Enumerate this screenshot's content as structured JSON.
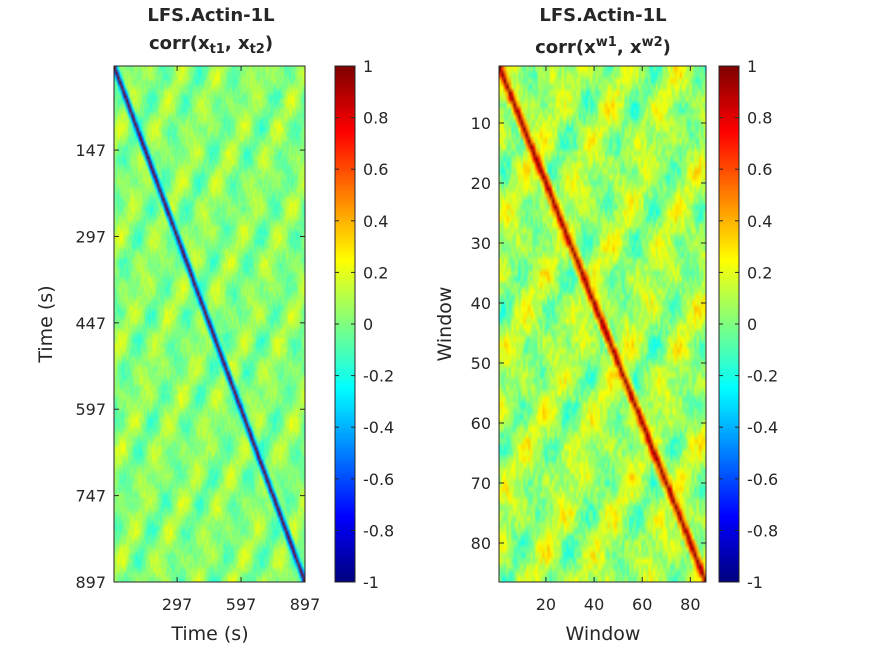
{
  "colormap": "jet",
  "colors": {
    "background": "#ffffff",
    "axis": "#262626",
    "text": "#262626"
  },
  "chart_data": [
    {
      "type": "heatmap",
      "panel": "time",
      "title_line1": "LFS.Actin-1L",
      "title_line2_prefix": "corr(x",
      "title_sub1": "t1",
      "title_mid": ", x",
      "title_sub2": "t2",
      "title_suffix": ")",
      "xlabel": "Time (s)",
      "ylabel": "Time (s)",
      "xlim": [
        1,
        897
      ],
      "ylim": [
        1,
        897
      ],
      "y_reversed": true,
      "xticks": [
        297,
        597,
        897
      ],
      "xticklabels": [
        "297",
        "597",
        "897"
      ],
      "yticks": [
        147,
        297,
        447,
        597,
        747,
        897
      ],
      "yticklabels": [
        "147",
        "297",
        "447",
        "597",
        "747",
        "897"
      ],
      "grid_size": 110,
      "diagonal_value": 1.0,
      "off_diagonal_band_value": -0.45,
      "background_range": [
        -0.2,
        0.25
      ],
      "clim": [
        -1,
        1
      ],
      "colorbar_ticks": [
        -1,
        -0.8,
        -0.6,
        -0.4,
        -0.2,
        0,
        0.2,
        0.4,
        0.6,
        0.8,
        1
      ],
      "colorbar_ticklabels": [
        "-1",
        "-0.8",
        "-0.6",
        "-0.4",
        "-0.2",
        "0",
        "0.2",
        "0.4",
        "0.6",
        "0.8",
        "1"
      ]
    },
    {
      "type": "heatmap",
      "panel": "window",
      "title_line1": "LFS.Actin-1L",
      "title_line2_prefix": "corr(x",
      "title_sup1": "w1",
      "title_mid": ", x",
      "title_sup2": "w2",
      "title_suffix": ")",
      "xlabel": "Window",
      "ylabel": "Window",
      "xlim": [
        0.5,
        86.5
      ],
      "ylim": [
        0.5,
        86.5
      ],
      "y_reversed": true,
      "xticks": [
        20,
        40,
        60,
        80
      ],
      "xticklabels": [
        "20",
        "40",
        "60",
        "80"
      ],
      "yticks": [
        10,
        20,
        30,
        40,
        50,
        60,
        70,
        80
      ],
      "yticklabels": [
        "10",
        "20",
        "30",
        "40",
        "50",
        "60",
        "70",
        "80"
      ],
      "grid_size": 86,
      "diagonal_value": 1.0,
      "background_range": [
        -0.2,
        0.35
      ],
      "clim": [
        -1,
        1
      ],
      "colorbar_ticks": [
        -1,
        -0.8,
        -0.6,
        -0.4,
        -0.2,
        0,
        0.2,
        0.4,
        0.6,
        0.8,
        1
      ],
      "colorbar_ticklabels": [
        "-1",
        "-0.8",
        "-0.6",
        "-0.4",
        "-0.2",
        "0",
        "0.2",
        "0.4",
        "0.6",
        "0.8",
        "1"
      ]
    }
  ]
}
